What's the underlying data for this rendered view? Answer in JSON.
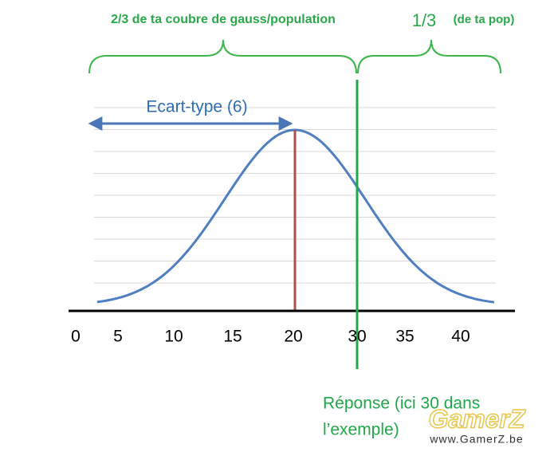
{
  "top_left_label": "2/3 de ta coubre de gauss/population",
  "top_right_label_main": "1/3",
  "top_right_label_sub": "(de ta pop)",
  "std_label": "Ecart-type (6)",
  "axis_labels": [
    "0",
    "5",
    "10",
    "15",
    "20",
    "30",
    "35",
    "40"
  ],
  "answer_label": [
    "Réponse (ici 30 dans",
    "l’exemple)"
  ],
  "watermark": "GamerZ",
  "watermark_url": "www.GamerZ.be"
}
